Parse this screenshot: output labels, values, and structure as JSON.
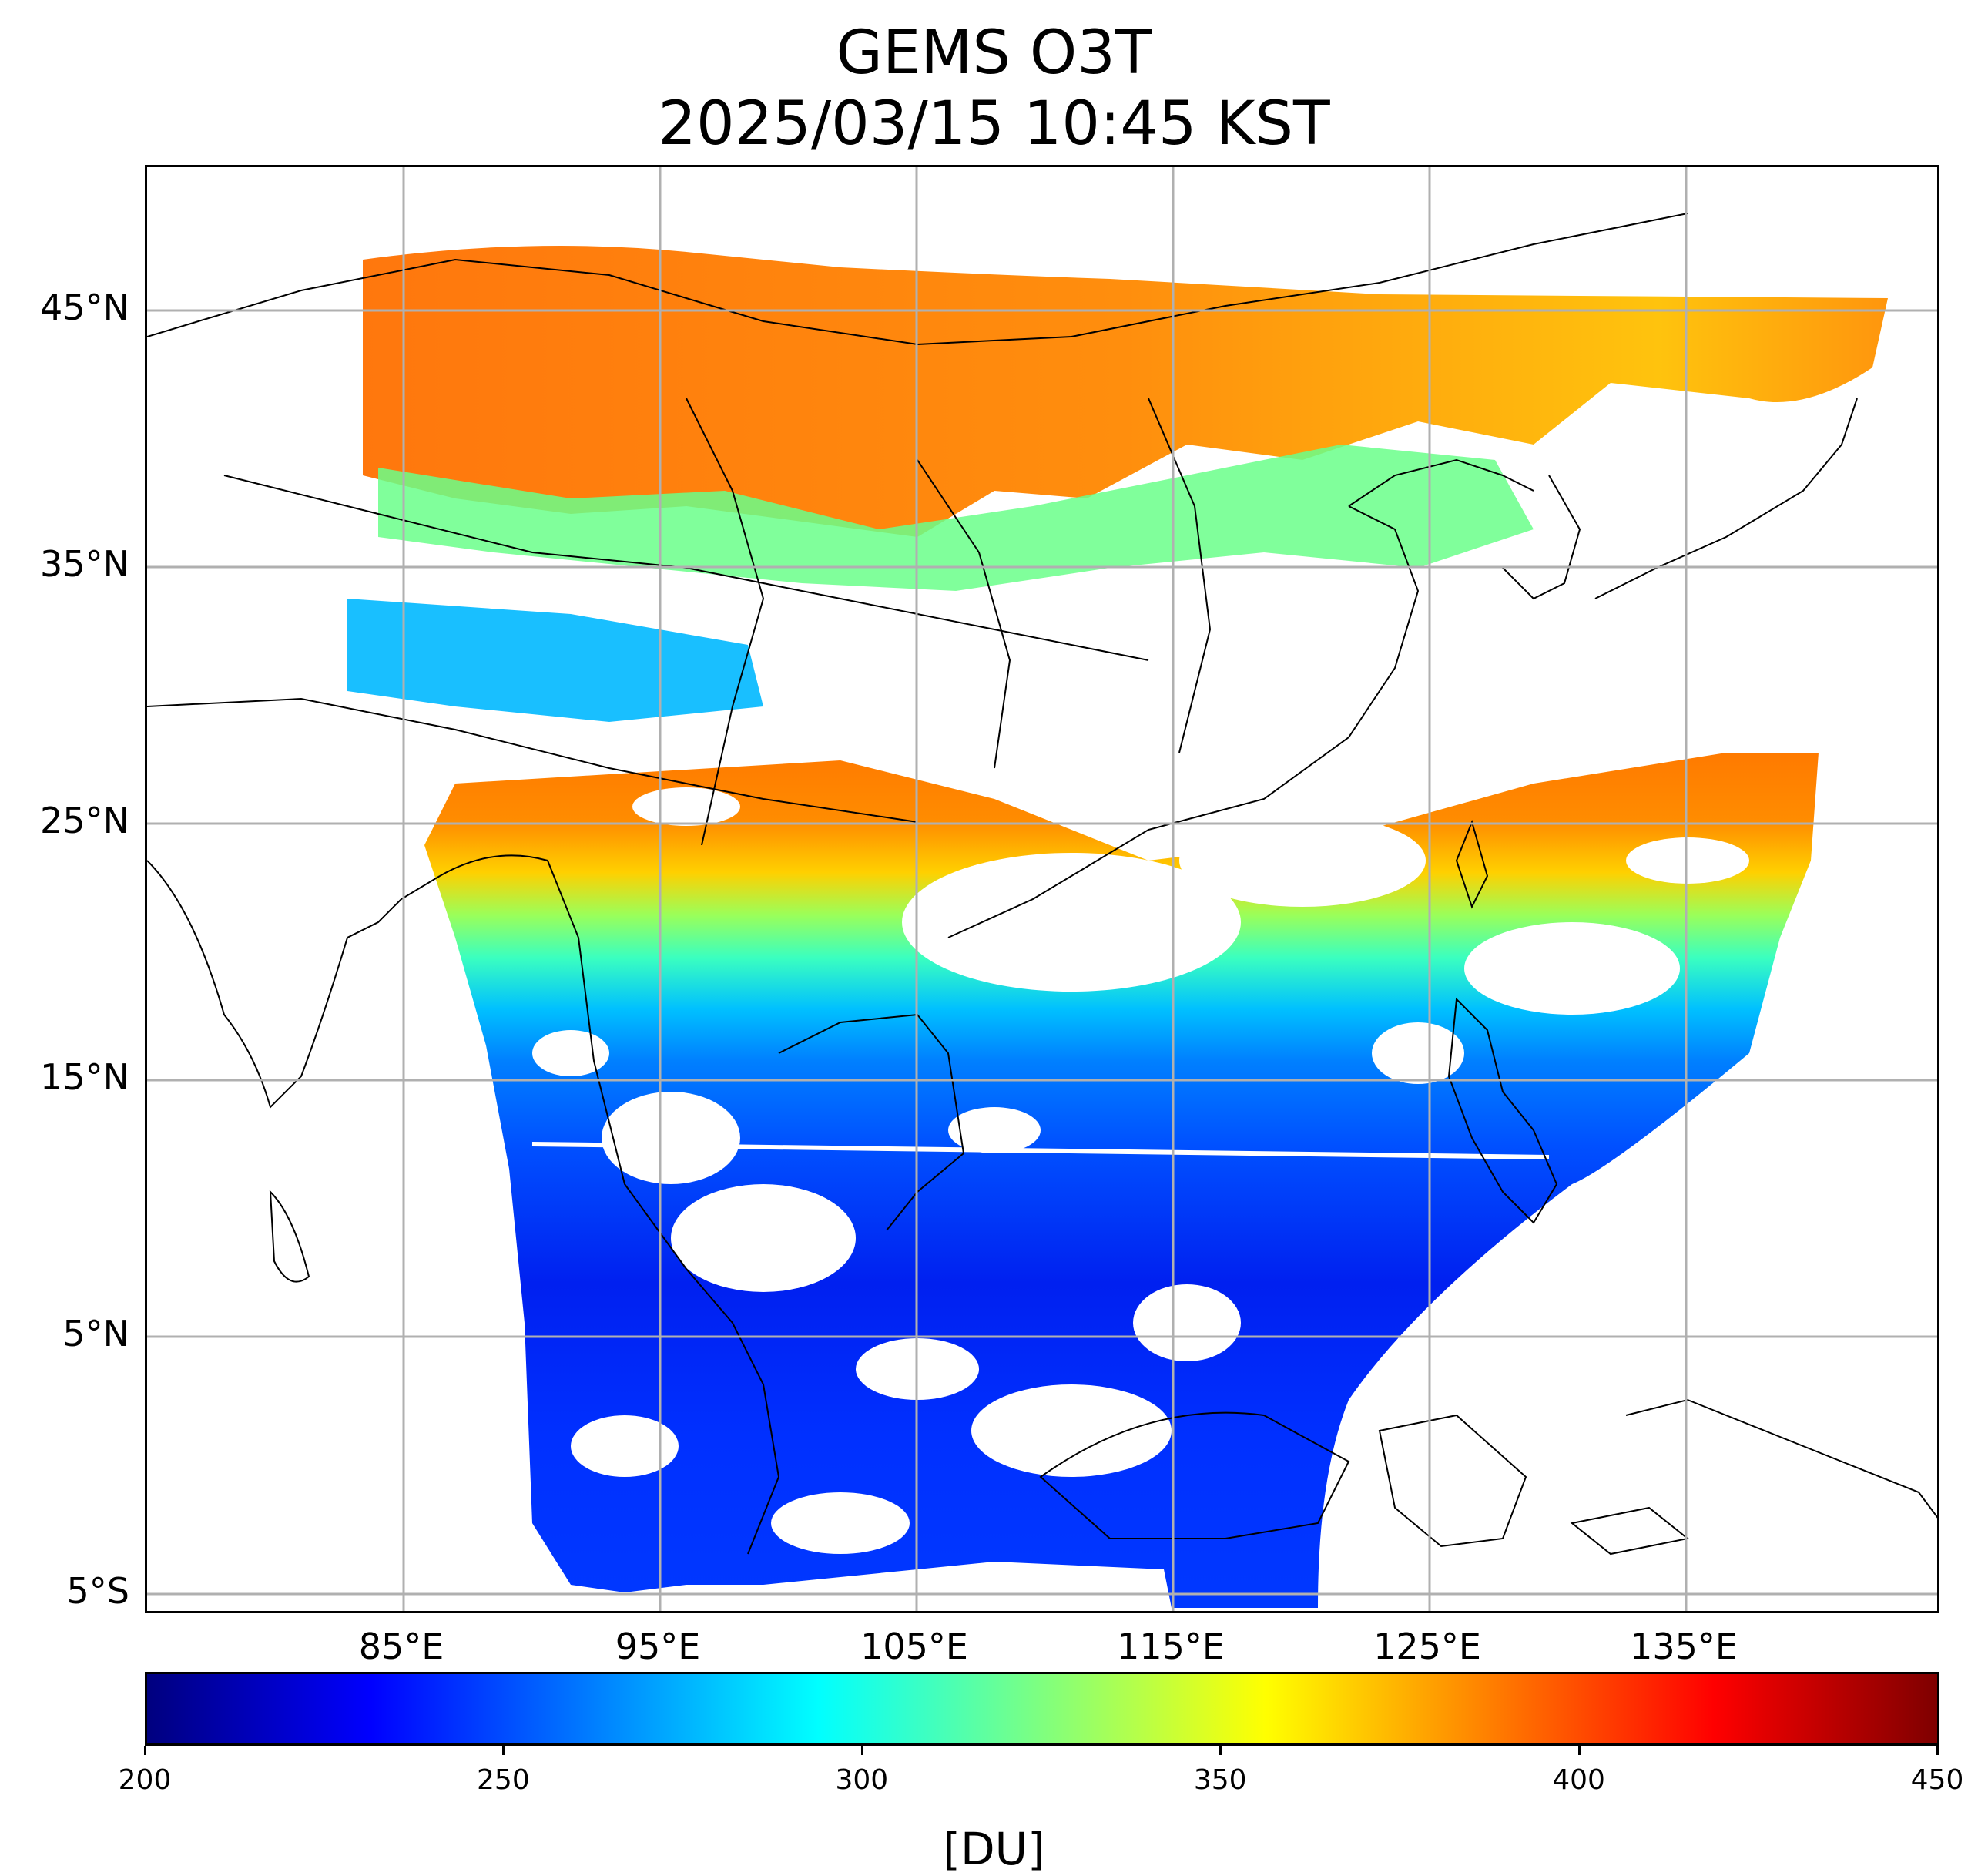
{
  "title_line1": "GEMS O3T",
  "title_line2": "2025/03/15 10:45 KST",
  "map": {
    "lat_labels": [
      "45°N",
      "35°N",
      "25°N",
      "15°N",
      "5°N",
      "5°S"
    ],
    "lon_labels": [
      "85°E",
      "95°E",
      "105°E",
      "115°E",
      "125°E",
      "135°E"
    ],
    "gridline_color": "#b0b0b0",
    "coastline_color": "#000000",
    "no_data_color": "#ffffff"
  },
  "colorbar": {
    "colormap": "jet",
    "vmin": 200,
    "vmax": 450,
    "ticks": [
      "200",
      "250",
      "300",
      "350",
      "400",
      "450"
    ],
    "unit": "[DU]"
  },
  "field_summary": {
    "variable": "O3T",
    "high_values_north": "~390-410 DU near 40-45°N",
    "low_values_south": "~240-255 DU in tropics"
  }
}
